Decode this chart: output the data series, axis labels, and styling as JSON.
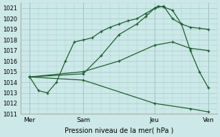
{
  "xlabel": "Pression niveau de la mer( hPa )",
  "bg_color": "#cce8e8",
  "grid_color": "#aacccc",
  "line_color": "#1a5c2a",
  "ylim": [
    1011,
    1021.5
  ],
  "yticks": [
    1011,
    1012,
    1013,
    1014,
    1015,
    1016,
    1017,
    1018,
    1019,
    1020,
    1021
  ],
  "xtick_labels": [
    "Mer",
    "Sam",
    "Jeu",
    "Ven"
  ],
  "xtick_positions": [
    0,
    30,
    70,
    100
  ],
  "xlim": [
    -5,
    105
  ],
  "vlines": [
    0,
    30,
    70,
    100
  ],
  "line_steep_x": [
    0,
    5,
    10,
    15,
    20,
    25,
    30,
    35,
    40,
    45,
    50,
    55,
    60,
    65,
    70,
    75,
    80,
    85,
    90,
    95,
    100
  ],
  "line_steep_y": [
    1014.5,
    1013.2,
    1013.0,
    1014.0,
    1016.0,
    1017.8,
    1018.0,
    1018.2,
    1018.8,
    1019.2,
    1019.5,
    1019.8,
    1020.0,
    1020.5,
    1021.0,
    1021.2,
    1020.0,
    1019.5,
    1017.0,
    1015.0,
    1013.5
  ],
  "line_top_x": [
    0,
    30,
    40,
    50,
    60,
    65,
    70,
    72,
    75,
    80,
    85,
    90,
    95,
    100
  ],
  "line_top_y": [
    1014.5,
    1014.8,
    1016.5,
    1018.5,
    1019.5,
    1020.2,
    1021.0,
    1021.2,
    1021.1,
    1020.8,
    1019.5,
    1019.2,
    1019.1,
    1019.0
  ],
  "line_mid_x": [
    0,
    30,
    50,
    70,
    80,
    90,
    100
  ],
  "line_mid_y": [
    1014.5,
    1015.0,
    1016.0,
    1017.5,
    1017.8,
    1017.2,
    1017.0
  ],
  "line_down_x": [
    0,
    30,
    70,
    90,
    100
  ],
  "line_down_y": [
    1014.5,
    1014.2,
    1012.0,
    1011.5,
    1011.2
  ]
}
